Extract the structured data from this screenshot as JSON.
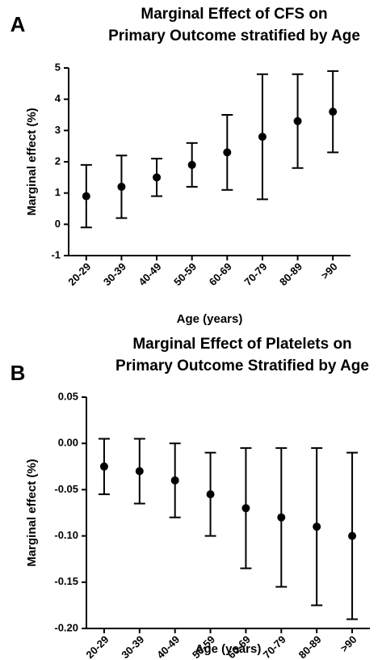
{
  "chart_data": [
    {
      "type": "errorbar",
      "label": "A",
      "title": [
        "Marginal Effect of CFS on",
        "Primary Outcome stratified by Age"
      ],
      "x_label": "Age (years)",
      "y_label": "Marginal effect (%)",
      "categories": [
        "20-29",
        "30-39",
        "40-49",
        "50-59",
        "60-69",
        "70-79",
        "80-89",
        ">90"
      ],
      "values": [
        0.9,
        1.2,
        1.5,
        1.9,
        2.3,
        2.8,
        3.3,
        3.6
      ],
      "lower": [
        -0.1,
        0.2,
        0.9,
        1.2,
        1.1,
        0.8,
        1.8,
        2.3
      ],
      "upper": [
        1.9,
        2.2,
        2.1,
        2.6,
        3.5,
        4.8,
        4.8,
        4.9
      ],
      "color": "#000000",
      "ylim": [
        -1,
        5
      ],
      "yticks": [
        -1,
        0,
        1,
        2,
        3,
        4,
        5
      ]
    },
    {
      "type": "errorbar",
      "label": "B",
      "title": [
        "Marginal Effect of Platelets on",
        "Primary Outcome Stratified by Age"
      ],
      "x_label": "Age (years)",
      "y_label": "Marginal effect (%)",
      "categories": [
        "20-29",
        "30-39",
        "40-49",
        "50-59",
        "60-69",
        "70-79",
        "80-89",
        ">90"
      ],
      "values": [
        -0.025,
        -0.03,
        -0.04,
        -0.055,
        -0.07,
        -0.08,
        -0.09,
        -0.1
      ],
      "lower": [
        -0.055,
        -0.065,
        -0.08,
        -0.1,
        -0.135,
        -0.155,
        -0.175,
        -0.19
      ],
      "upper": [
        0.005,
        0.005,
        0.0,
        -0.01,
        -0.005,
        -0.005,
        -0.005,
        -0.01
      ],
      "color": "#000000",
      "ylim": [
        -0.2,
        0.05
      ],
      "yticks": [
        0.05,
        {
          "value": 0,
          "label": "0.00"
        },
        -0.05,
        {
          "value": -0.1,
          "label": "-0.10"
        },
        -0.15,
        {
          "value": -0.2,
          "label": "-0.20"
        }
      ]
    }
  ]
}
